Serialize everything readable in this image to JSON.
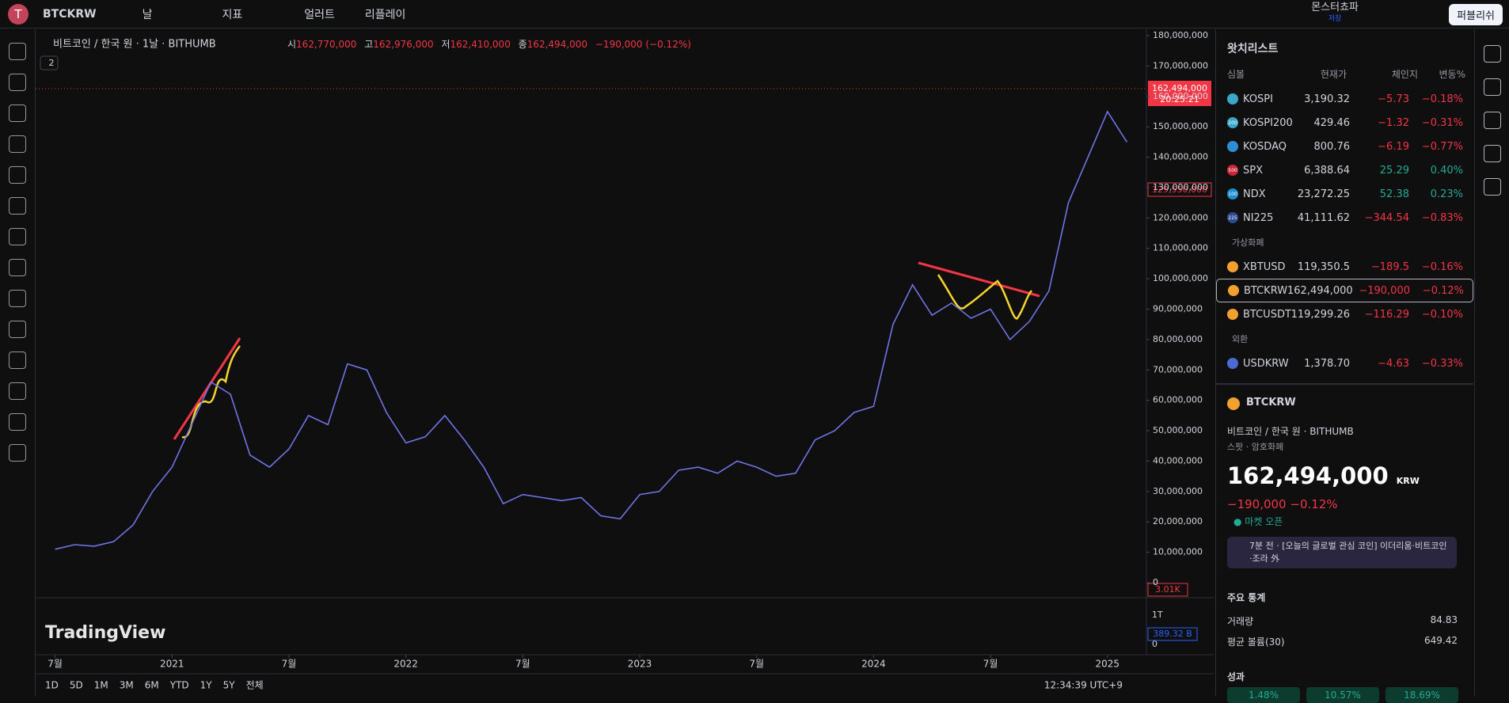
{
  "toolbar": {
    "avatar": "T",
    "symbol": "BTCKRW",
    "interval": "날",
    "indicators": "지표",
    "alert": "얼러트",
    "replay": "리플레이",
    "layout_name": "몬스터쵸파",
    "layout_status": "저장",
    "publish": "퍼블리쉬"
  },
  "legend": {
    "title": "비트코인 / 한국 원 · 1날 · BITHUMB",
    "open_label": "시",
    "open": "162,770,000",
    "high_label": "고",
    "high": "162,976,000",
    "low_label": "저",
    "low": "162,410,000",
    "close_label": "종",
    "close": "162,494,000",
    "change": "−190,000 (−0.12%)",
    "collapse": "2"
  },
  "chart_data": {
    "type": "line",
    "x": [
      "2020-07",
      "2020-08",
      "2020-09",
      "2020-10",
      "2020-11",
      "2020-12",
      "2021-01",
      "2021-02",
      "2021-03",
      "2021-04",
      "2021-05",
      "2021-06",
      "2021-07",
      "2021-08",
      "2021-09",
      "2021-10",
      "2021-11",
      "2021-12",
      "2022-01",
      "2022-02",
      "2022-03",
      "2022-04",
      "2022-05",
      "2022-06",
      "2022-07",
      "2022-08",
      "2022-09",
      "2022-10",
      "2022-11",
      "2022-12",
      "2023-01",
      "2023-02",
      "2023-03",
      "2023-04",
      "2023-05",
      "2023-06",
      "2023-07",
      "2023-08",
      "2023-09",
      "2023-10",
      "2023-11",
      "2023-12",
      "2024-01",
      "2024-02",
      "2024-03",
      "2024-04",
      "2024-05",
      "2024-06",
      "2024-07",
      "2024-08",
      "2024-09",
      "2024-10",
      "2024-11",
      "2024-12",
      "2025-01",
      "2025-02"
    ],
    "series": [
      {
        "name": "BTCKRW",
        "color": "#6f74e6",
        "values": [
          11000000,
          12500000,
          12000000,
          13500000,
          19000000,
          30000000,
          38000000,
          52000000,
          66000000,
          62000000,
          42000000,
          38000000,
          44000000,
          55000000,
          52000000,
          72000000,
          70000000,
          56000000,
          46000000,
          48000000,
          55000000,
          47000000,
          38000000,
          26000000,
          29000000,
          28000000,
          27000000,
          28000000,
          22000000,
          21000000,
          29000000,
          30000000,
          37000000,
          38000000,
          36000000,
          40000000,
          38000000,
          35000000,
          36000000,
          47000000,
          50000000,
          56000000,
          58000000,
          85000000,
          98000000,
          88000000,
          92000000,
          87000000,
          90000000,
          80000000,
          86000000,
          96000000,
          125000000,
          140000000,
          155000000,
          145000000
        ]
      }
    ],
    "xlim": [
      "2020-06",
      "2025-03"
    ],
    "xticks": [
      {
        "value": "2020-07",
        "label": "7월"
      },
      {
        "value": "2021-01",
        "label": "2021"
      },
      {
        "value": "2021-07",
        "label": "7월"
      },
      {
        "value": "2022-01",
        "label": "2022"
      },
      {
        "value": "2022-07",
        "label": "7월"
      },
      {
        "value": "2023-01",
        "label": "2023"
      },
      {
        "value": "2023-07",
        "label": "7월"
      },
      {
        "value": "2024-01",
        "label": "2024"
      },
      {
        "value": "2024-07",
        "label": "7월"
      },
      {
        "value": "2025-01",
        "label": "2025"
      }
    ],
    "ylim": [
      0,
      180000000
    ],
    "yticks": [
      0,
      {
        "value": 10000000,
        "label": "10,000,000"
      },
      {
        "value": 20000000,
        "label": "20,000,000"
      },
      {
        "value": 30000000,
        "label": "30,000,000"
      },
      {
        "value": 40000000,
        "label": "40,000,000"
      },
      {
        "value": 50000000,
        "label": "50,000,000"
      },
      {
        "value": 60000000,
        "label": "60,000,000"
      },
      {
        "value": 70000000,
        "label": "70,000,000"
      },
      {
        "value": 80000000,
        "label": "80,000,000"
      },
      {
        "value": 90000000,
        "label": "90,000,000"
      },
      {
        "value": 100000000,
        "label": "100,000,000"
      },
      {
        "value": 110000000,
        "label": "110,000,000"
      },
      {
        "value": 120000000,
        "label": "120,000,000"
      },
      {
        "value": 130000000,
        "label": "130,000,000"
      },
      {
        "value": 140000000,
        "label": "140,000,000"
      },
      {
        "value": 150000000,
        "label": "150,000,000"
      },
      {
        "value": 160000000,
        "label": "160,000,000"
      },
      {
        "value": 170000000,
        "label": "170,000,000"
      },
      {
        "value": 180000000,
        "label": "180,000,000"
      }
    ],
    "grid": false
  },
  "price_labels": {
    "last": "162,494,000",
    "countdown": "20:25:21",
    "low_mark": "129,550,000",
    "volume": "3.01K"
  },
  "volume_pane": {
    "top_tick": "1T",
    "bottom_tick": "0",
    "last": "389.32 B"
  },
  "watermark": "TradingView",
  "range_buttons": [
    "1D",
    "5D",
    "1M",
    "3M",
    "6M",
    "YTD",
    "1Y",
    "5Y",
    "전체"
  ],
  "clock": "12:34:39 UTC+9",
  "watchlist": {
    "title": "왓치리스트",
    "columns": [
      "심볼",
      "현재가",
      "체인지",
      "변동%"
    ],
    "groups": [
      {
        "name": null,
        "rows": [
          {
            "badge": "",
            "badge_color": "#3aa6c9",
            "symbol": "KOSPI",
            "price": "3,190.32",
            "change": "−5.73",
            "pct": "−0.18%"
          },
          {
            "badge": "200",
            "badge_color": "#3aa6c9",
            "symbol": "KOSPI200",
            "price": "429.46",
            "change": "−1.32",
            "pct": "−0.31%"
          },
          {
            "badge": "",
            "badge_color": "#2c8fd6",
            "symbol": "KOSDAQ",
            "price": "800.76",
            "change": "−6.19",
            "pct": "−0.77%"
          },
          {
            "badge": "500",
            "badge_color": "#c9263b",
            "symbol": "SPX",
            "price": "6,388.64",
            "change": "25.29",
            "pct": "0.40%"
          },
          {
            "badge": "100",
            "badge_color": "#1d8fcf",
            "symbol": "NDX",
            "price": "23,272.25",
            "change": "52.38",
            "pct": "0.23%"
          },
          {
            "badge": "225",
            "badge_color": "#2a4c8f",
            "symbol": "NI225",
            "price": "41,111.62",
            "change": "−344.54",
            "pct": "−0.83%"
          }
        ]
      },
      {
        "name": "가상화폐",
        "rows": [
          {
            "badge": "",
            "badge_color": "#f2a12e",
            "symbol": "XBTUSD",
            "price": "119,350.5",
            "change": "−189.5",
            "pct": "−0.16%"
          },
          {
            "badge": "",
            "badge_color": "#f2a12e",
            "symbol": "BTCKRW",
            "price": "162,494,000",
            "change": "−190,000",
            "pct": "−0.12%"
          },
          {
            "badge": "",
            "badge_color": "#f2a12e",
            "symbol": "BTCUSDT",
            "price": "119,299.26",
            "change": "−116.29",
            "pct": "−0.10%"
          }
        ]
      },
      {
        "name": "외환",
        "rows": [
          {
            "badge": "",
            "badge_color": "#4a6bd1",
            "symbol": "USDKRW",
            "price": "1,378.70",
            "change": "−4.63",
            "pct": "−0.33%"
          }
        ]
      }
    ]
  },
  "details": {
    "symbol": "BTCKRW",
    "name": "비트코인 / 한국 원",
    "exchange": "BITHUMB",
    "kind": "스팟 · 암호화폐",
    "price": "162,494,000",
    "currency": "KRW",
    "change": "−190,000",
    "pct": "−0.12%",
    "status": "마켓 오픈",
    "news": "7분 전 · [오늘의 글로벌 관심 코인] 이더리움·비트코인·조라 外",
    "stats_title": "주요 통계",
    "stats": [
      {
        "label": "거래량",
        "value": "84.83"
      },
      {
        "label": "평균 볼륨(30)",
        "value": "649.42"
      }
    ],
    "performance_title": "성과",
    "performance": [
      "1.48%",
      "10.57%",
      "18.69%"
    ]
  }
}
